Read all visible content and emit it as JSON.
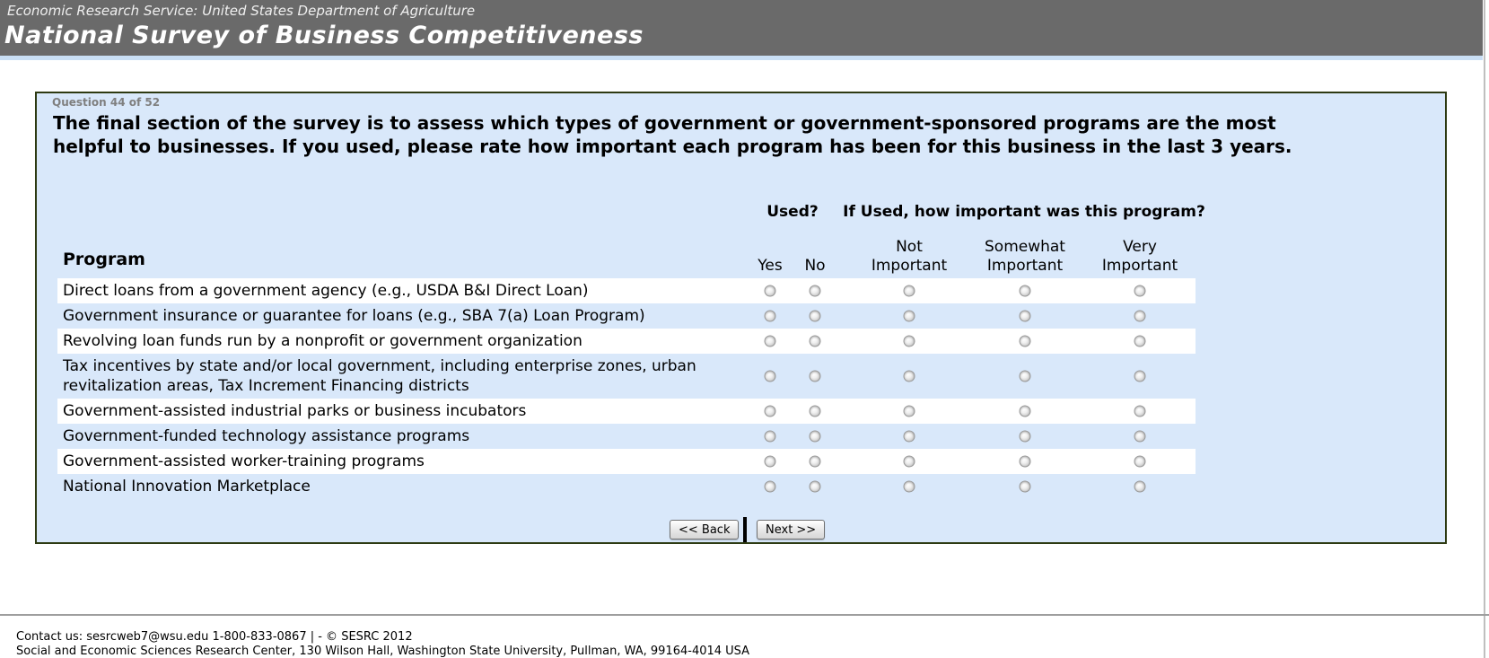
{
  "header": {
    "agency": "Economic Research Service: United States Department of Agriculture",
    "title": "National Survey of Business Competitiveness"
  },
  "question": {
    "progress": "Question 44 of 52",
    "text": "The final section of the survey is to assess which types of government or government-sponsored programs are the most helpful to businesses. If you used, please rate how important each program has been for this business in the last 3 years."
  },
  "table": {
    "program_header": "Program",
    "used_header": "Used?",
    "importance_header": "If Used, how important was this program?",
    "columns": [
      {
        "id": "yes",
        "label": "Yes"
      },
      {
        "id": "no",
        "label": "No"
      },
      {
        "id": "not-important",
        "label": "Not Important"
      },
      {
        "id": "somewhat-important",
        "label": "Somewhat Important"
      },
      {
        "id": "very-important",
        "label": "Very Important"
      }
    ],
    "rows": [
      {
        "label": "Direct loans from a government agency (e.g., USDA B&I Direct Loan)"
      },
      {
        "label": "Government insurance or guarantee for loans (e.g., SBA 7(a) Loan Program)"
      },
      {
        "label": "Revolving loan funds run by a nonprofit or government organization"
      },
      {
        "label": "Tax incentives by state and/or local government, including enterprise zones, urban revitalization areas, Tax Increment Financing districts"
      },
      {
        "label": "Government-assisted industrial parks or business incubators"
      },
      {
        "label": "Government-funded technology assistance programs"
      },
      {
        "label": "Government-assisted worker-training programs"
      },
      {
        "label": "National Innovation Marketplace"
      }
    ],
    "radio_state": "all unselected"
  },
  "buttons": {
    "back": "<< Back",
    "separator": "|",
    "next": "Next >>"
  },
  "footer": {
    "line1": "Contact us: sesrcweb7@wsu.edu 1-800-833-0867 | - © SESRC 2012",
    "line2": "Social and Economic Sciences Research Center, 130 Wilson Hall, Washington State University, Pullman, WA, 99164-4014 USA"
  },
  "colors": {
    "header_bg": "#6a6a6a",
    "header_strip": "#c9dff5",
    "panel_bg": "#d9e8fa",
    "panel_border": "#2d3a12",
    "stripe": "#ffffff"
  }
}
